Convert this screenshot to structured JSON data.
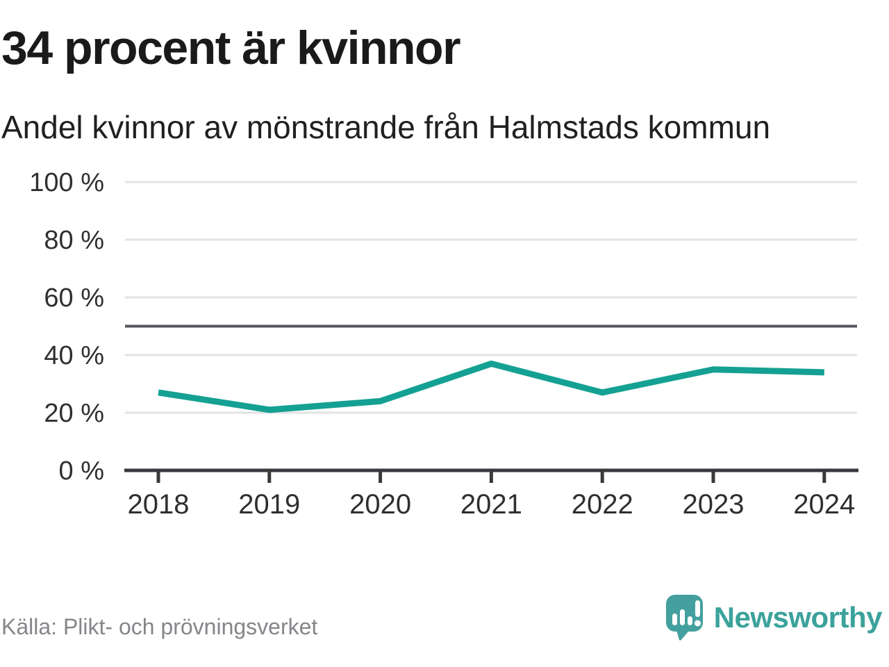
{
  "header": {
    "title": "34 procent är kvinnor",
    "subtitle": "Andel kvinnor av mönstrande från Halmstads kommun"
  },
  "footer": {
    "source": "Källa: Plikt- och prövningsverket",
    "brand": "Newsworthy",
    "brand_icon": "newsworthy-speech-bubble-bar-chart-icon"
  },
  "colors": {
    "series_line": "#14a193",
    "brand_teal": "#3ba29b",
    "gridline": "#e3e3e3",
    "reference_line": "#55555c",
    "axis": "#39393d",
    "tick_label": "#2f2f2f",
    "title_text": "#1a1a1a",
    "source_text": "#85858a"
  },
  "chart_data": {
    "type": "line",
    "title": "34 procent är kvinnor",
    "subtitle": "Andel kvinnor av mönstrande från Halmstads kommun",
    "source": "Källa: Plikt- och prövningsverket",
    "x": [
      "2018",
      "2019",
      "2020",
      "2021",
      "2022",
      "2023",
      "2024"
    ],
    "series": [
      {
        "name": "Andel kvinnor av mönstrande",
        "values": [
          27,
          21,
          24,
          37,
          27,
          35,
          34
        ]
      }
    ],
    "unit": "%",
    "ylim": [
      0,
      100
    ],
    "yticks": [
      0,
      20,
      40,
      60,
      80,
      100
    ],
    "ytick_suffix": " %",
    "reference_line": 50,
    "grid": "horizontal",
    "legend": "none"
  }
}
